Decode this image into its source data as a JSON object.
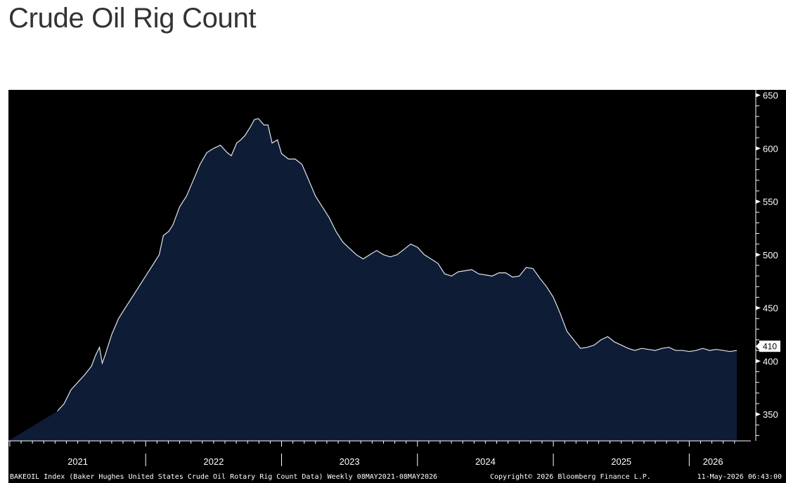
{
  "title": "Crude Oil Rig Count",
  "footer": {
    "description": "BAKEOIL Index (Baker Hughes United States Crude Oil Rotary Rig Count Data) Weekly 08MAY2021-08MAY2026",
    "copyright": "Copyright© 2026 Bloomberg Finance L.P.",
    "timestamp": "11-May-2026 06:43:00"
  },
  "colors": {
    "plot_bg": "#000000",
    "area_fill": "#0e1c35",
    "line": "#dfe6f0",
    "axis_text": "#ffffff",
    "label_box": "#ffffff"
  },
  "chart_data": {
    "type": "area",
    "x_unit": "year",
    "ylim": [
      325,
      655
    ],
    "y_ticks": [
      350,
      400,
      450,
      500,
      550,
      600,
      650
    ],
    "x_tick_labels": [
      "2021",
      "2022",
      "2023",
      "2024",
      "2025",
      "2026"
    ],
    "grid": false,
    "last_value_label": "410",
    "points": [
      [
        2021.35,
        353
      ],
      [
        2021.4,
        360
      ],
      [
        2021.45,
        373
      ],
      [
        2021.5,
        380
      ],
      [
        2021.55,
        387
      ],
      [
        2021.6,
        395
      ],
      [
        2021.63,
        405
      ],
      [
        2021.66,
        413
      ],
      [
        2021.68,
        398
      ],
      [
        2021.7,
        405
      ],
      [
        2021.75,
        425
      ],
      [
        2021.8,
        440
      ],
      [
        2021.85,
        450
      ],
      [
        2021.9,
        460
      ],
      [
        2021.95,
        470
      ],
      [
        2022.0,
        480
      ],
      [
        2022.05,
        490
      ],
      [
        2022.1,
        500
      ],
      [
        2022.13,
        518
      ],
      [
        2022.17,
        522
      ],
      [
        2022.2,
        528
      ],
      [
        2022.25,
        545
      ],
      [
        2022.3,
        555
      ],
      [
        2022.35,
        570
      ],
      [
        2022.4,
        585
      ],
      [
        2022.45,
        596
      ],
      [
        2022.5,
        600
      ],
      [
        2022.55,
        603
      ],
      [
        2022.6,
        596
      ],
      [
        2022.63,
        593
      ],
      [
        2022.67,
        605
      ],
      [
        2022.7,
        608
      ],
      [
        2022.73,
        612
      ],
      [
        2022.77,
        620
      ],
      [
        2022.8,
        627
      ],
      [
        2022.83,
        628
      ],
      [
        2022.87,
        622
      ],
      [
        2022.9,
        622
      ],
      [
        2022.93,
        605
      ],
      [
        2022.97,
        608
      ],
      [
        2023.0,
        595
      ],
      [
        2023.05,
        590
      ],
      [
        2023.1,
        590
      ],
      [
        2023.15,
        585
      ],
      [
        2023.2,
        570
      ],
      [
        2023.25,
        555
      ],
      [
        2023.3,
        545
      ],
      [
        2023.35,
        535
      ],
      [
        2023.4,
        522
      ],
      [
        2023.45,
        512
      ],
      [
        2023.5,
        506
      ],
      [
        2023.55,
        500
      ],
      [
        2023.6,
        496
      ],
      [
        2023.65,
        500
      ],
      [
        2023.7,
        504
      ],
      [
        2023.75,
        500
      ],
      [
        2023.8,
        498
      ],
      [
        2023.85,
        500
      ],
      [
        2023.9,
        505
      ],
      [
        2023.95,
        510
      ],
      [
        2024.0,
        507
      ],
      [
        2024.05,
        500
      ],
      [
        2024.1,
        496
      ],
      [
        2024.15,
        492
      ],
      [
        2024.2,
        482
      ],
      [
        2024.25,
        480
      ],
      [
        2024.3,
        484
      ],
      [
        2024.35,
        485
      ],
      [
        2024.4,
        486
      ],
      [
        2024.45,
        482
      ],
      [
        2024.5,
        481
      ],
      [
        2024.55,
        480
      ],
      [
        2024.6,
        483
      ],
      [
        2024.65,
        483
      ],
      [
        2024.7,
        479
      ],
      [
        2024.75,
        480
      ],
      [
        2024.8,
        488
      ],
      [
        2024.85,
        487
      ],
      [
        2024.9,
        478
      ],
      [
        2024.95,
        470
      ],
      [
        2025.0,
        460
      ],
      [
        2025.05,
        445
      ],
      [
        2025.1,
        428
      ],
      [
        2025.15,
        420
      ],
      [
        2025.2,
        412
      ],
      [
        2025.25,
        413
      ],
      [
        2025.3,
        415
      ],
      [
        2025.35,
        420
      ],
      [
        2025.4,
        423
      ],
      [
        2025.45,
        418
      ],
      [
        2025.5,
        415
      ],
      [
        2025.55,
        412
      ],
      [
        2025.6,
        410
      ],
      [
        2025.65,
        412
      ],
      [
        2025.7,
        411
      ],
      [
        2025.75,
        410
      ],
      [
        2025.8,
        412
      ],
      [
        2025.85,
        413
      ],
      [
        2025.9,
        410
      ],
      [
        2025.95,
        410
      ],
      [
        2026.0,
        409
      ],
      [
        2026.05,
        410
      ],
      [
        2026.1,
        412
      ],
      [
        2026.15,
        410
      ],
      [
        2026.2,
        411
      ],
      [
        2026.25,
        410
      ],
      [
        2026.3,
        409
      ],
      [
        2026.35,
        410
      ]
    ]
  }
}
